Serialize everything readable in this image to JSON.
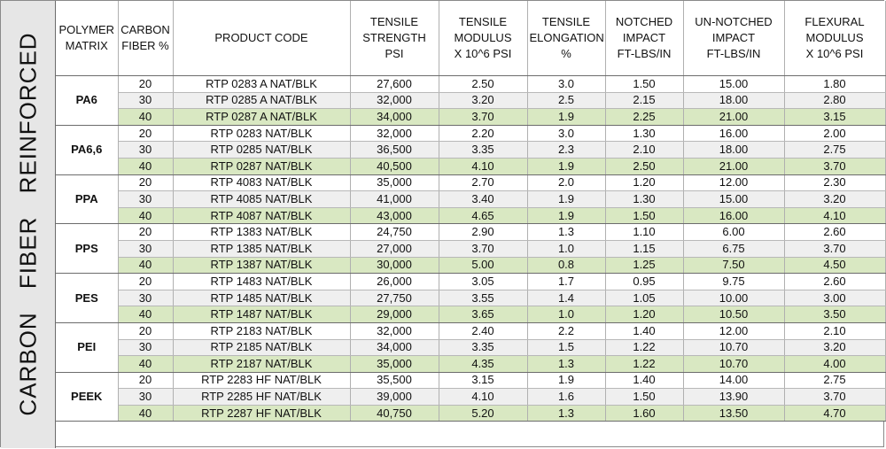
{
  "side_label": "CARBON FIBER REINFORCED",
  "headers": [
    [
      "POLYMER",
      "MATRIX"
    ],
    [
      "CARBON",
      "FIBER %"
    ],
    [
      "PRODUCT CODE"
    ],
    [
      "TENSILE",
      "STRENGTH",
      "PSI"
    ],
    [
      "TENSILE",
      "MODULUS",
      "X 10^6 PSI"
    ],
    [
      "TENSILE",
      "ELONGATION",
      "%"
    ],
    [
      "NOTCHED",
      "IMPACT",
      "FT-LBS/IN"
    ],
    [
      "UN-NOTCHED",
      "IMPACT",
      "FT-LBS/IN"
    ],
    [
      "FLEXURAL",
      "MODULUS",
      "X 10^6 PSI"
    ]
  ],
  "groups": [
    {
      "matrix": "PA6",
      "rows": [
        [
          "20",
          "RTP 0283 A NAT/BLK",
          "27,600",
          "2.50",
          "3.0",
          "1.50",
          "15.00",
          "1.80"
        ],
        [
          "30",
          "RTP 0285 A NAT/BLK",
          "32,000",
          "3.20",
          "2.5",
          "2.15",
          "18.00",
          "2.80"
        ],
        [
          "40",
          "RTP 0287 A NAT/BLK",
          "34,000",
          "3.70",
          "1.9",
          "2.25",
          "21.00",
          "3.15"
        ]
      ]
    },
    {
      "matrix": "PA6,6",
      "rows": [
        [
          "20",
          "RTP 0283 NAT/BLK",
          "32,000",
          "2.20",
          "3.0",
          "1.30",
          "16.00",
          "2.00"
        ],
        [
          "30",
          "RTP 0285 NAT/BLK",
          "36,500",
          "3.35",
          "2.3",
          "2.10",
          "18.00",
          "2.75"
        ],
        [
          "40",
          "RTP 0287 NAT/BLK",
          "40,500",
          "4.10",
          "1.9",
          "2.50",
          "21.00",
          "3.70"
        ]
      ]
    },
    {
      "matrix": "PPA",
      "rows": [
        [
          "20",
          "RTP 4083 NAT/BLK",
          "35,000",
          "2.70",
          "2.0",
          "1.20",
          "12.00",
          "2.30"
        ],
        [
          "30",
          "RTP 4085 NAT/BLK",
          "41,000",
          "3.40",
          "1.9",
          "1.30",
          "15.00",
          "3.20"
        ],
        [
          "40",
          "RTP 4087 NAT/BLK",
          "43,000",
          "4.65",
          "1.9",
          "1.50",
          "16.00",
          "4.10"
        ]
      ]
    },
    {
      "matrix": "PPS",
      "rows": [
        [
          "20",
          "RTP 1383 NAT/BLK",
          "24,750",
          "2.90",
          "1.3",
          "1.10",
          "6.00",
          "2.60"
        ],
        [
          "30",
          "RTP 1385 NAT/BLK",
          "27,000",
          "3.70",
          "1.0",
          "1.15",
          "6.75",
          "3.70"
        ],
        [
          "40",
          "RTP 1387 NAT/BLK",
          "30,000",
          "5.00",
          "0.8",
          "1.25",
          "7.50",
          "4.50"
        ]
      ]
    },
    {
      "matrix": "PES",
      "rows": [
        [
          "20",
          "RTP 1483 NAT/BLK",
          "26,000",
          "3.05",
          "1.7",
          "0.95",
          "9.75",
          "2.60"
        ],
        [
          "30",
          "RTP 1485 NAT/BLK",
          "27,750",
          "3.55",
          "1.4",
          "1.05",
          "10.00",
          "3.00"
        ],
        [
          "40",
          "RTP 1487 NAT/BLK",
          "29,000",
          "3.65",
          "1.0",
          "1.20",
          "10.50",
          "3.50"
        ]
      ]
    },
    {
      "matrix": "PEI",
      "rows": [
        [
          "20",
          "RTP 2183 NAT/BLK",
          "32,000",
          "2.40",
          "2.2",
          "1.40",
          "12.00",
          "2.10"
        ],
        [
          "30",
          "RTP 2185 NAT/BLK",
          "34,000",
          "3.35",
          "1.5",
          "1.22",
          "10.70",
          "3.20"
        ],
        [
          "40",
          "RTP 2187 NAT/BLK",
          "35,000",
          "4.35",
          "1.3",
          "1.22",
          "10.70",
          "4.00"
        ]
      ]
    },
    {
      "matrix": "PEEK",
      "rows": [
        [
          "20",
          "RTP 2283 HF NAT/BLK",
          "35,500",
          "3.15",
          "1.9",
          "1.40",
          "14.00",
          "2.75"
        ],
        [
          "30",
          "RTP 2285 HF NAT/BLK",
          "39,000",
          "4.10",
          "1.6",
          "1.50",
          "13.90",
          "3.70"
        ],
        [
          "40",
          "RTP 2287 HF NAT/BLK",
          "40,750",
          "5.20",
          "1.3",
          "1.60",
          "13.50",
          "4.70"
        ]
      ]
    }
  ],
  "colors": {
    "green_row": "#d9e8c2",
    "gray_row": "#efefef",
    "side_bg": "#e6e6e6"
  }
}
